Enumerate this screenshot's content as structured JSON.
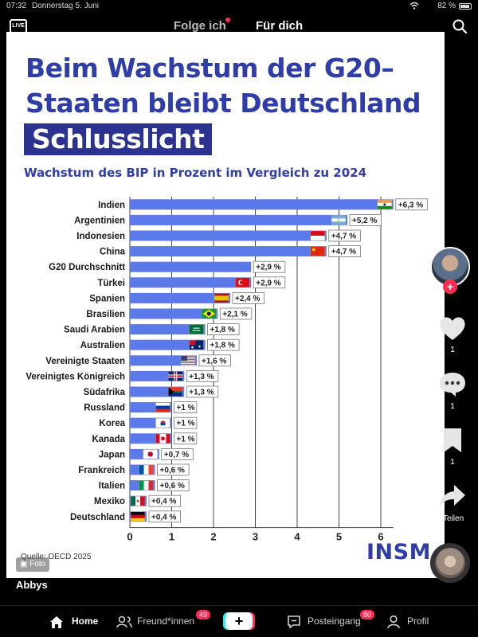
{
  "status_bar": {
    "time": "07:32",
    "date": "Donnerstag 5. Juni",
    "battery": "82 %"
  },
  "top_nav": {
    "live_label": "LIVE",
    "tab_following": "Folge ich",
    "tab_for_you": "Für dich"
  },
  "post": {
    "headline_line1": "Beim Wachstum der G20–",
    "headline_line2": "Staaten bleibt Deutschland",
    "headline_highlight": "Schlusslicht",
    "subtitle": "Wachstum des BIP in Prozent im Vergleich zu 2024",
    "source": "Quelle: OECD 2025",
    "brand": "INSM",
    "photo_badge": "Foto",
    "author": "Abbys"
  },
  "chart_data": {
    "type": "bar",
    "orientation": "horizontal",
    "categories": [
      "Indien",
      "Argentinien",
      "Indonesien",
      "China",
      "G20 Durchschnitt",
      "Türkei",
      "Spanien",
      "Brasilien",
      "Saudi Arabien",
      "Australien",
      "Vereinigte Staaten",
      "Vereinigtes Königreich",
      "Südafrika",
      "Russland",
      "Korea",
      "Kanada",
      "Japan",
      "Frankreich",
      "Italien",
      "Mexiko",
      "Deutschland"
    ],
    "values": [
      6.3,
      5.2,
      4.7,
      4.7,
      2.9,
      2.9,
      2.4,
      2.1,
      1.8,
      1.8,
      1.6,
      1.3,
      1.3,
      1,
      1,
      1,
      0.7,
      0.6,
      0.6,
      0.4,
      0.4
    ],
    "value_labels": [
      "+6,3 %",
      "+5,2 %",
      "+4,7 %",
      "+4,7 %",
      "+2,9 %",
      "+2,9 %",
      "+2,4 %",
      "+2,1 %",
      "+1,8 %",
      "+1,8 %",
      "+1,6 %",
      "+1,3 %",
      "+1,3 %",
      "+1 %",
      "+1 %",
      "+1 %",
      "+0,7 %",
      "+0,6 %",
      "+0,6 %",
      "+0,4 %",
      "+0,4 %"
    ],
    "flags": [
      "india",
      "argentina",
      "indonesia",
      "china",
      "",
      "turkey",
      "spain",
      "brazil",
      "saudi-arabia",
      "australia",
      "usa",
      "uk",
      "south-africa",
      "russia",
      "korea",
      "canada",
      "japan",
      "france",
      "italy",
      "mexico",
      "germany"
    ],
    "xticks": [
      "0",
      "1",
      "2",
      "3",
      "4",
      "5",
      "6"
    ],
    "xlim": [
      0,
      6.3
    ],
    "grid": true,
    "bar_color": "#5b79e8"
  },
  "right_rail": {
    "like_count": "1",
    "comment_count": "1",
    "save_count": "1",
    "share_label": "Teilen"
  },
  "bottom_nav": {
    "home": "Home",
    "friends": "Freund*innen",
    "friends_badge": "49",
    "inbox": "Posteingang",
    "inbox_badge": "80",
    "profile": "Profil",
    "create": "+"
  }
}
